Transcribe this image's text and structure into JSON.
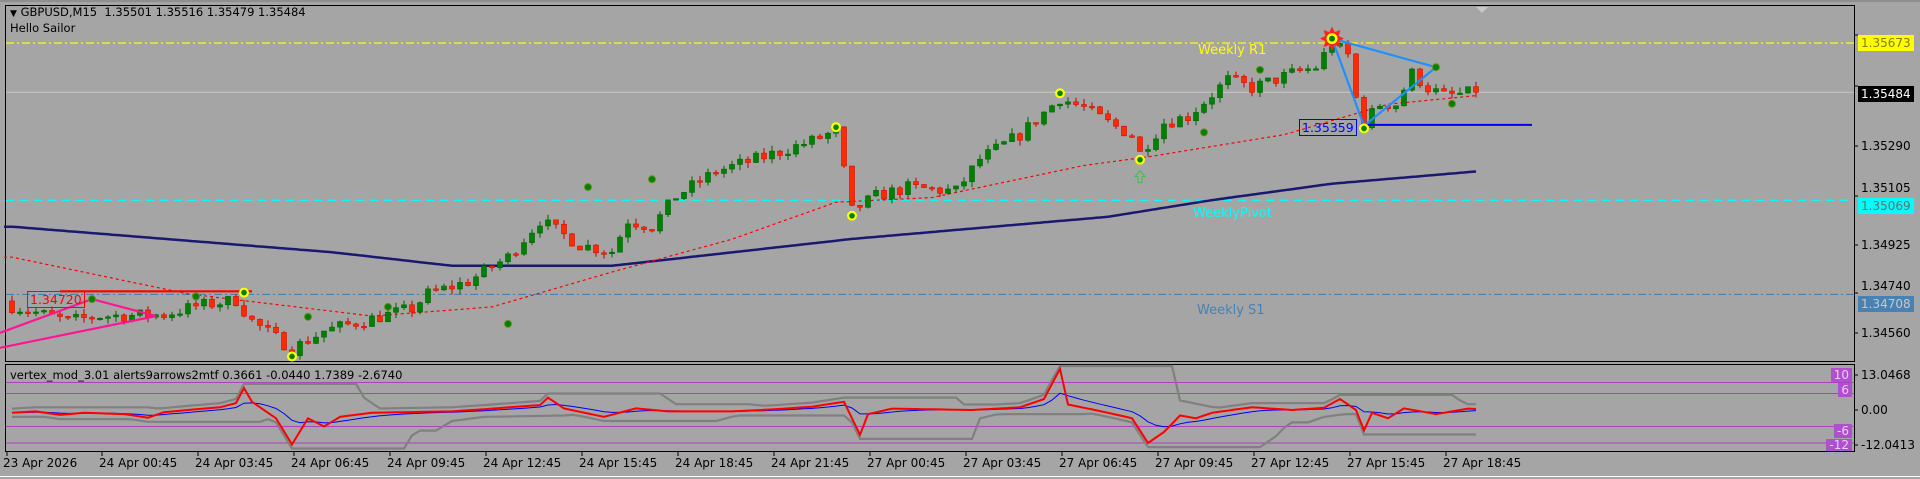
{
  "header": {
    "symbol": "GBPUSD,M15",
    "ohlc": "1.35501 1.35516 1.35479 1.35484",
    "subtitle": "Hello Sailor"
  },
  "colors": {
    "background": "#a5a5a5",
    "bull": "#008000",
    "bear": "#ff2a00",
    "weekly_r1": "#ffff00",
    "weekly_pivot": "#00ffff",
    "weekly_s1": "#4682b4",
    "slow_ma": "#191970",
    "fast_ma": "#ff0000",
    "zigzag_blue": "#1e90ff",
    "zigzag_pink": "#ff1493",
    "osc_main": "#ff0000",
    "osc_signal": "#0000ff",
    "osc_band": "#808080",
    "osc_level": "#b040c0"
  },
  "chart_data": {
    "type": "candlestick",
    "title": "GBPUSD,M15",
    "timeframe": "M15",
    "ylim": [
      1.34455,
      1.3578
    ],
    "price_ticks": [
      "1.35290",
      "1.35105",
      "1.34925",
      "1.34740",
      "1.34560"
    ],
    "highlight_labels": {
      "weekly_r1": "1.35673",
      "current": "1.35484",
      "weekly_pivot": "1.35069",
      "weekly_s1": "1.34708"
    },
    "levels": [
      {
        "name": "Weekly R1",
        "price": 1.35673,
        "style": "dashdot"
      },
      {
        "name": "WeeklyPivot",
        "price": 1.35069,
        "style": "dash"
      },
      {
        "name": "Weekly S1",
        "price": 1.34708,
        "style": "dashdot"
      }
    ],
    "current_price": 1.35484,
    "close_anchors": [
      [
        0,
        1.34663
      ],
      [
        7,
        1.34606
      ],
      [
        11,
        1.34625
      ],
      [
        19,
        1.3463
      ],
      [
        23,
        1.34663
      ],
      [
        28,
        1.34686
      ],
      [
        30,
        1.34606
      ],
      [
        35,
        1.34498
      ],
      [
        39,
        1.34568
      ],
      [
        45,
        1.34615
      ],
      [
        50,
        1.34653
      ],
      [
        52,
        1.3471
      ],
      [
        57,
        1.34757
      ],
      [
        62,
        1.34851
      ],
      [
        66,
        1.34992
      ],
      [
        71,
        1.34898
      ],
      [
        75,
        1.34874
      ],
      [
        77,
        1.34992
      ],
      [
        80,
        1.34968
      ],
      [
        83,
        1.35085
      ],
      [
        88,
        1.3518
      ],
      [
        94,
        1.35236
      ],
      [
        100,
        1.35297
      ],
      [
        103,
        1.35335
      ],
      [
        105,
        1.35029
      ],
      [
        108,
        1.35085
      ],
      [
        112,
        1.35118
      ],
      [
        118,
        1.35104
      ],
      [
        121,
        1.35227
      ],
      [
        126,
        1.35321
      ],
      [
        131,
        1.35461
      ],
      [
        134,
        1.35424
      ],
      [
        137,
        1.35367
      ],
      [
        140,
        1.3532
      ],
      [
        141,
        1.3525
      ],
      [
        144,
        1.35367
      ],
      [
        147,
        1.35391
      ],
      [
        152,
        1.35532
      ],
      [
        155,
        1.355
      ],
      [
        160,
        1.35556
      ],
      [
        163,
        1.3558
      ],
      [
        165,
        1.35673
      ],
      [
        167,
        1.35626
      ],
      [
        168,
        1.35461
      ],
      [
        169,
        1.35367
      ],
      [
        171,
        1.35438
      ],
      [
        173,
        1.35438
      ],
      [
        175,
        1.35556
      ],
      [
        177,
        1.355
      ],
      [
        179,
        1.3547
      ],
      [
        183,
        1.35484
      ]
    ],
    "slow_ma": [
      [
        0,
        1.34968
      ],
      [
        40,
        1.3487
      ],
      [
        55,
        1.34818
      ],
      [
        75,
        1.34818
      ],
      [
        105,
        1.34921
      ],
      [
        137,
        1.35006
      ],
      [
        150,
        1.3507
      ],
      [
        165,
        1.35133
      ],
      [
        183,
        1.3518
      ]
    ],
    "fast_ma": [
      [
        0,
        1.34851
      ],
      [
        22,
        1.3471
      ],
      [
        45,
        1.34625
      ],
      [
        60,
        1.3466
      ],
      [
        75,
        1.34794
      ],
      [
        90,
        1.3492
      ],
      [
        103,
        1.35062
      ],
      [
        115,
        1.3508
      ],
      [
        134,
        1.35203
      ],
      [
        142,
        1.35236
      ],
      [
        159,
        1.35321
      ],
      [
        172,
        1.35438
      ],
      [
        183,
        1.35471
      ]
    ],
    "markers": [
      {
        "bar": 35,
        "price": 1.3447,
        "kind": "yellow-dot"
      },
      {
        "bar": 103,
        "price": 1.3535,
        "kind": "yellow-dot"
      },
      {
        "bar": 105,
        "price": 1.3501,
        "kind": "yellow-dot"
      },
      {
        "bar": 131,
        "price": 1.3548,
        "kind": "yellow-dot"
      },
      {
        "bar": 141,
        "price": 1.35225,
        "kind": "yellow-dot"
      },
      {
        "bar": 165,
        "price": 1.3569,
        "kind": "burst"
      },
      {
        "bar": 169,
        "price": 1.35345,
        "kind": "yellow-dot"
      },
      {
        "bar": 29,
        "price": 1.34715,
        "kind": "yellow-dot"
      },
      {
        "bar": 10,
        "price": 1.3469,
        "kind": "green-dot"
      },
      {
        "bar": 23,
        "price": 1.347,
        "kind": "green-dot"
      },
      {
        "bar": 37,
        "price": 1.34622,
        "kind": "green-dot"
      },
      {
        "bar": 47,
        "price": 1.3466,
        "kind": "green-dot"
      },
      {
        "bar": 62,
        "price": 1.34595,
        "kind": "green-dot"
      },
      {
        "bar": 72,
        "price": 1.3512,
        "kind": "green-dot"
      },
      {
        "bar": 80,
        "price": 1.3515,
        "kind": "green-dot"
      },
      {
        "bar": 149,
        "price": 1.3533,
        "kind": "green-dot"
      },
      {
        "bar": 156,
        "price": 1.3557,
        "kind": "green-dot"
      },
      {
        "bar": 178,
        "price": 1.3558,
        "kind": "green-dot"
      },
      {
        "bar": 180,
        "price": 1.3544,
        "kind": "green-dot"
      }
    ],
    "arrow_up": {
      "bar": 141,
      "price": 1.3516
    },
    "support_line": {
      "label": "1.35359",
      "price": 1.35359,
      "from_bar": 169,
      "to_bar": 190
    },
    "resistance_line": {
      "label": "1.34720",
      "price": 1.3472,
      "from_bar": 6,
      "to_bar": 30
    },
    "zigzag_blue": [
      [
        165,
        1.3569
      ],
      [
        169,
        1.35355
      ],
      [
        178,
        1.3558
      ],
      [
        165,
        1.3569
      ]
    ],
    "zigzag_pink": [
      [
        -2,
        1.34555
      ],
      [
        10,
        1.3469
      ],
      [
        18,
        1.34625
      ],
      [
        -2,
        1.345
      ]
    ],
    "time_labels": [
      "23 Apr 2026",
      "24 Apr 00:45",
      "24 Apr 03:45",
      "24 Apr 06:45",
      "24 Apr 09:45",
      "24 Apr 12:45",
      "24 Apr 15:45",
      "24 Apr 18:45",
      "24 Apr 21:45",
      "27 Apr 00:45",
      "27 Apr 03:45",
      "27 Apr 06:45",
      "27 Apr 09:45",
      "27 Apr 12:45",
      "27 Apr 15:45",
      "27 Apr 18:45"
    ],
    "indicator": {
      "name": "vertex_mod_3.01 alerts9arrows2mtf",
      "values_text": "0.3661 -0.0440 1.7389 -2.6740",
      "ylim": [
        -12.0413,
        13.0468
      ],
      "axis_labels": {
        "max": "13.0468",
        "min": "-12.0413",
        "zero": "0.00"
      },
      "levels": [
        {
          "value": 10,
          "label": "10"
        },
        {
          "value": 6,
          "label": "6"
        },
        {
          "value": -6,
          "label": "-6"
        },
        {
          "value": -12,
          "label": "-12"
        }
      ],
      "main_anchors": [
        [
          0,
          -1
        ],
        [
          3,
          -0.5
        ],
        [
          6,
          -1.8
        ],
        [
          9,
          -1
        ],
        [
          14,
          -1.5
        ],
        [
          17,
          -2.8
        ],
        [
          19,
          -0.8
        ],
        [
          22,
          0
        ],
        [
          26,
          1
        ],
        [
          28,
          2.5
        ],
        [
          29,
          8
        ],
        [
          30,
          3
        ],
        [
          33,
          -3
        ],
        [
          35,
          -12.5
        ],
        [
          37,
          -3
        ],
        [
          39,
          -6
        ],
        [
          41,
          -2.5
        ],
        [
          45,
          -1
        ],
        [
          55,
          -0.5
        ],
        [
          60,
          0.5
        ],
        [
          66,
          1.8
        ],
        [
          67,
          4.5
        ],
        [
          69,
          0.6
        ],
        [
          74,
          -2.5
        ],
        [
          78,
          0.6
        ],
        [
          82,
          -0.5
        ],
        [
          90,
          -0.5
        ],
        [
          95,
          0.2
        ],
        [
          100,
          1.2
        ],
        [
          104,
          3
        ],
        [
          106,
          -9
        ],
        [
          107,
          -1.5
        ],
        [
          110,
          0.5
        ],
        [
          120,
          0
        ],
        [
          126,
          1
        ],
        [
          129,
          4
        ],
        [
          131,
          15
        ],
        [
          132,
          2
        ],
        [
          137,
          -1
        ],
        [
          140,
          -3
        ],
        [
          142,
          -12
        ],
        [
          144,
          -8
        ],
        [
          146,
          -2
        ],
        [
          148,
          -3
        ],
        [
          150,
          -1
        ],
        [
          155,
          1
        ],
        [
          160,
          0
        ],
        [
          164,
          0.8
        ],
        [
          166,
          4
        ],
        [
          168,
          0
        ],
        [
          169,
          -7.4
        ],
        [
          170,
          -1
        ],
        [
          172,
          -3
        ],
        [
          174,
          0.6
        ],
        [
          178,
          -1.5
        ],
        [
          182,
          0.5
        ],
        [
          183,
          0.37
        ]
      ]
    }
  }
}
